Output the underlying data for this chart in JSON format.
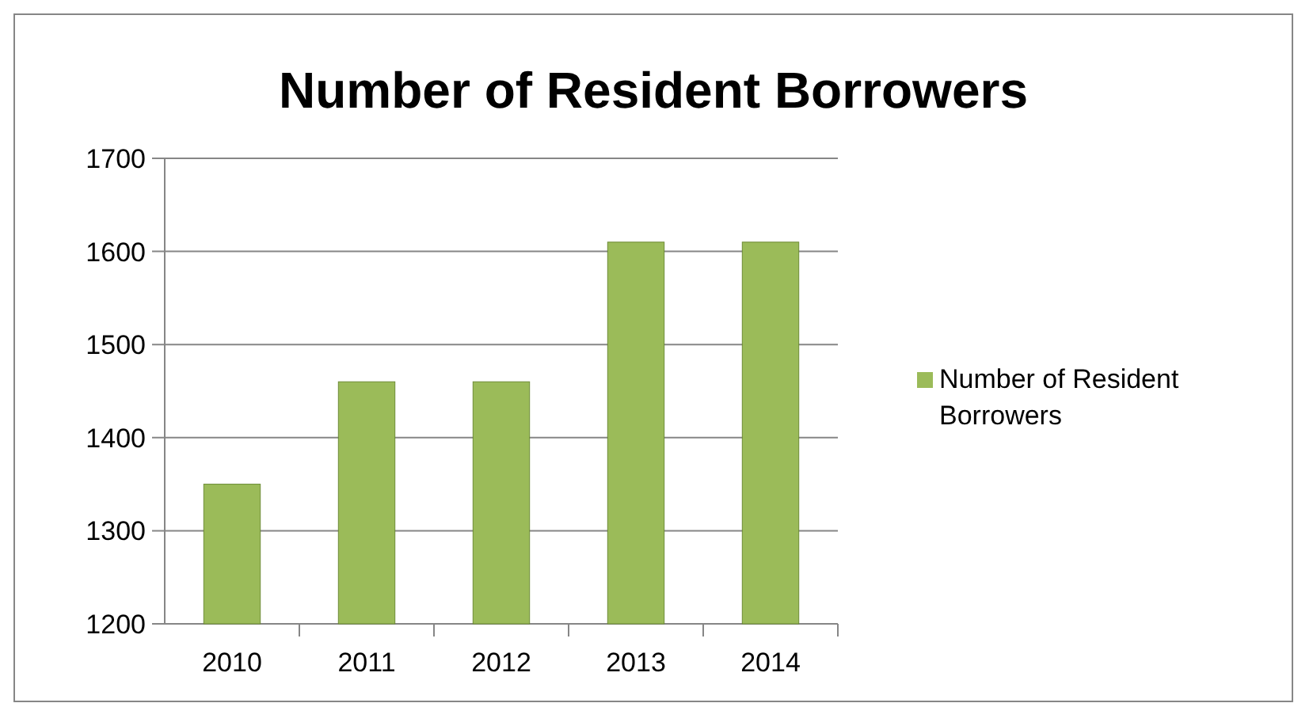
{
  "chart_data": {
    "type": "bar",
    "title": "Number of Resident Borrowers",
    "categories": [
      "2010",
      "2011",
      "2012",
      "2013",
      "2014"
    ],
    "series": [
      {
        "name": "Number of Resident Borrowers",
        "color": "#9bbb59",
        "values": [
          1350,
          1460,
          1460,
          1610,
          1610
        ]
      }
    ],
    "ylim": [
      1200,
      1700
    ],
    "yticks": [
      1200,
      1300,
      1400,
      1500,
      1600,
      1700
    ],
    "grid": "y",
    "legend": "right"
  }
}
